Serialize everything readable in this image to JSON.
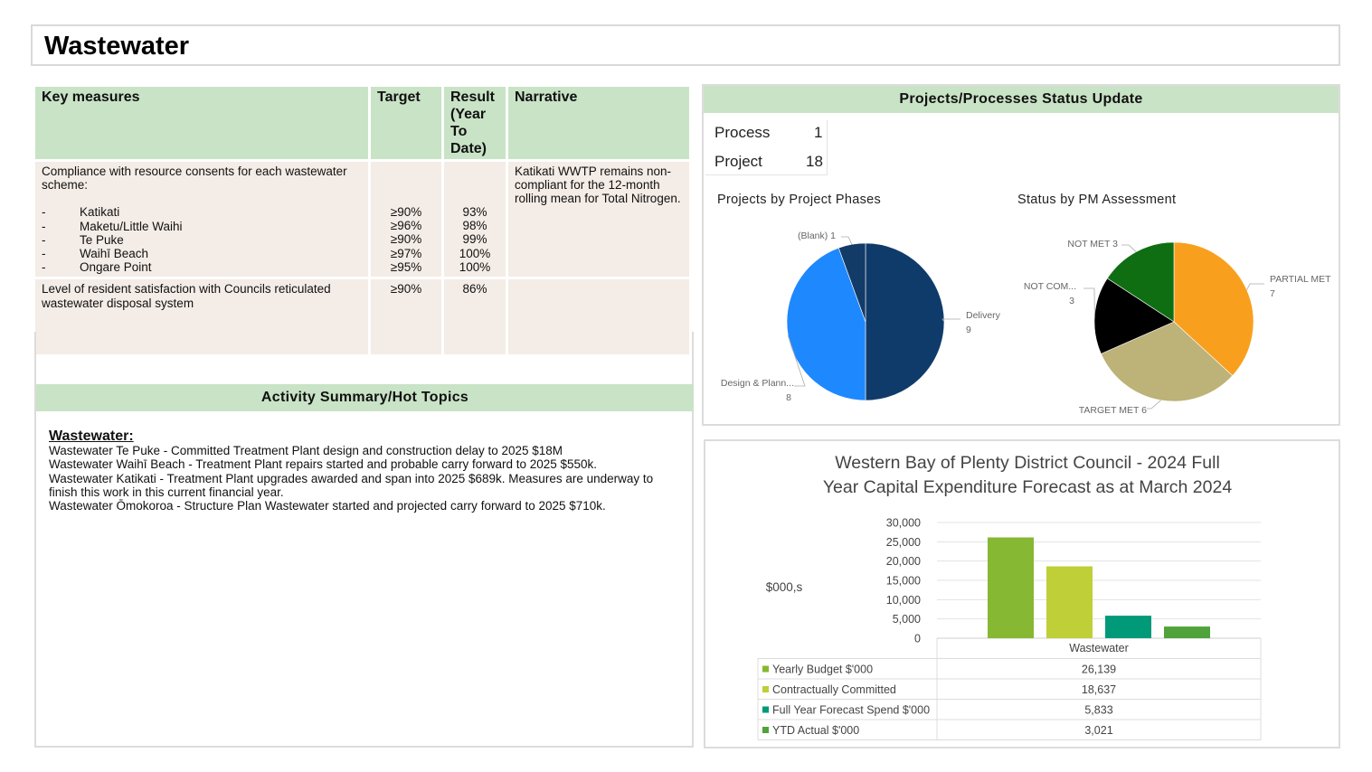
{
  "page": {
    "title": "Wastewater"
  },
  "measures": {
    "headers": {
      "key": "Key measures",
      "target": "Target",
      "result": "Result (Year To Date)",
      "narrative": "Narrative"
    },
    "row1": {
      "intro": "Compliance with resource consents for each wastewater scheme:",
      "items": [
        {
          "dash": "-",
          "name": "Katikati",
          "target": "≥90%",
          "result": "93%"
        },
        {
          "dash": "-",
          "name": "Maketu/Little Waihi",
          "target": "≥96%",
          "result": "98%"
        },
        {
          "dash": "-",
          "name": "Te Puke",
          "target": "≥90%",
          "result": "99%"
        },
        {
          "dash": "-",
          "name": "Waihī Beach",
          "target": "≥97%",
          "result": "100%"
        },
        {
          "dash": "-",
          "name": "Ongare Point",
          "target": "≥95%",
          "result": "100%"
        }
      ],
      "narrative": "Katikati WWTP remains non-compliant for the 12-month rolling mean for Total Nitrogen."
    },
    "row2": {
      "measure": "Level of resident satisfaction with Councils reticulated wastewater disposal system",
      "target": "≥90%",
      "result": "86%"
    }
  },
  "activity": {
    "header": "Activity Summary/Hot Topics",
    "heading": "Wastewater:",
    "lines": [
      "Wastewater Te Puke - Committed Treatment Plant design and construction delay to 2025 $18M",
      "Wastewater Waihī Beach - Treatment Plant repairs started and probable carry forward to 2025 $550k.",
      "Wastewater Katikati - Treatment Plant upgrades awarded and span into 2025 $689k. Measures are underway to finish this work in this current financial year.",
      "Wastewater Ōmokoroa - Structure Plan Wastewater started and projected carry forward to 2025 $710k."
    ]
  },
  "projects": {
    "header": "Projects/Processes Status Update",
    "counts": [
      {
        "label": "Process",
        "value": "1"
      },
      {
        "label": "Project",
        "value": "18"
      }
    ]
  },
  "chart_data": [
    {
      "type": "pie",
      "title": "Projects by Project Phases",
      "slices": [
        {
          "label": "Delivery",
          "value": 9,
          "color": "#0f3b6b"
        },
        {
          "label": "Design & Plann...",
          "value": 8,
          "color": "#1e88ff"
        },
        {
          "label": "(Blank)",
          "value": 1,
          "color": "#123b68"
        }
      ]
    },
    {
      "type": "pie",
      "title": "Status by PM Assessment",
      "slices": [
        {
          "label": "PARTIAL MET",
          "value": 7,
          "color": "#f8a01e"
        },
        {
          "label": "TARGET MET",
          "value": 6,
          "color": "#bdb277"
        },
        {
          "label": "NOT COM...",
          "value": 3,
          "color": "#000000"
        },
        {
          "label": "NOT MET",
          "value": 3,
          "color": "#0f6e12"
        }
      ]
    },
    {
      "type": "bar",
      "title": "Western Bay of Plenty District Council - 2024 Full Year Capital Expenditure Forecast as at March 2024",
      "title_lines": [
        "Western Bay of Plenty District Council - 2024 Full",
        "Year Capital Expenditure Forecast as at March 2024"
      ],
      "ylabel": "$000,s",
      "ylim": [
        0,
        30000
      ],
      "yticks": [
        "30,000",
        "25,000",
        "20,000",
        "15,000",
        "10,000",
        "5,000",
        "0"
      ],
      "yticks_num": [
        30000,
        25000,
        20000,
        15000,
        10000,
        5000,
        0
      ],
      "categories": [
        "Wastewater"
      ],
      "series": [
        {
          "name": "Yearly Budget $'000",
          "values": [
            26139
          ],
          "label": "26,139",
          "color": "#86b833"
        },
        {
          "name": "Contractually Committed",
          "values": [
            18637
          ],
          "label": "18,637",
          "color": "#bfcf37"
        },
        {
          "name": "Full Year Forecast Spend $'000",
          "values": [
            5833
          ],
          "label": "5,833",
          "color": "#009a78"
        },
        {
          "name": "YTD Actual $'000",
          "values": [
            3021
          ],
          "label": "3,021",
          "color": "#4fa33a"
        }
      ]
    }
  ]
}
